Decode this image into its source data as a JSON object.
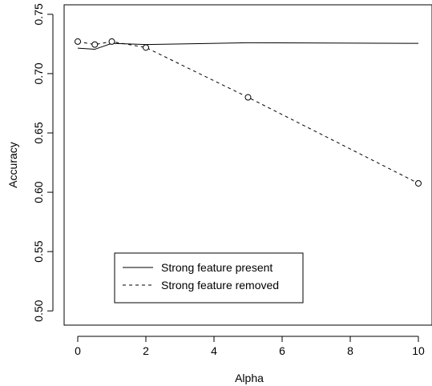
{
  "chart_data": {
    "type": "line",
    "title": "",
    "xlabel": "Alpha",
    "ylabel": "Accuracy",
    "xlim": [
      -0.4,
      10.4
    ],
    "ylim": [
      0.488,
      0.758
    ],
    "xticks": [
      0,
      2,
      4,
      6,
      8,
      10
    ],
    "xtick_labels": [
      "0",
      "2",
      "4",
      "6",
      "8",
      "10"
    ],
    "yticks": [
      0.5,
      0.55,
      0.6,
      0.65,
      0.7,
      0.75
    ],
    "ytick_labels": [
      "0.50",
      "0.55",
      "0.60",
      "0.65",
      "0.70",
      "0.75"
    ],
    "grid": false,
    "legend_position": "bottom-left",
    "series": [
      {
        "name": "Strong feature present",
        "line_style": "solid",
        "markers": false,
        "color": "#000000",
        "x": [
          0,
          0.5,
          1,
          2,
          5,
          10
        ],
        "y": [
          0.7215,
          0.7205,
          0.7255,
          0.7245,
          0.726,
          0.7255
        ]
      },
      {
        "name": "Strong feature removed",
        "line_style": "dashed",
        "markers": true,
        "marker": "open-circle",
        "color": "#000000",
        "x": [
          0,
          0.5,
          1,
          2,
          5,
          10
        ],
        "y": [
          0.727,
          0.7245,
          0.727,
          0.722,
          0.68,
          0.6075
        ]
      }
    ]
  }
}
